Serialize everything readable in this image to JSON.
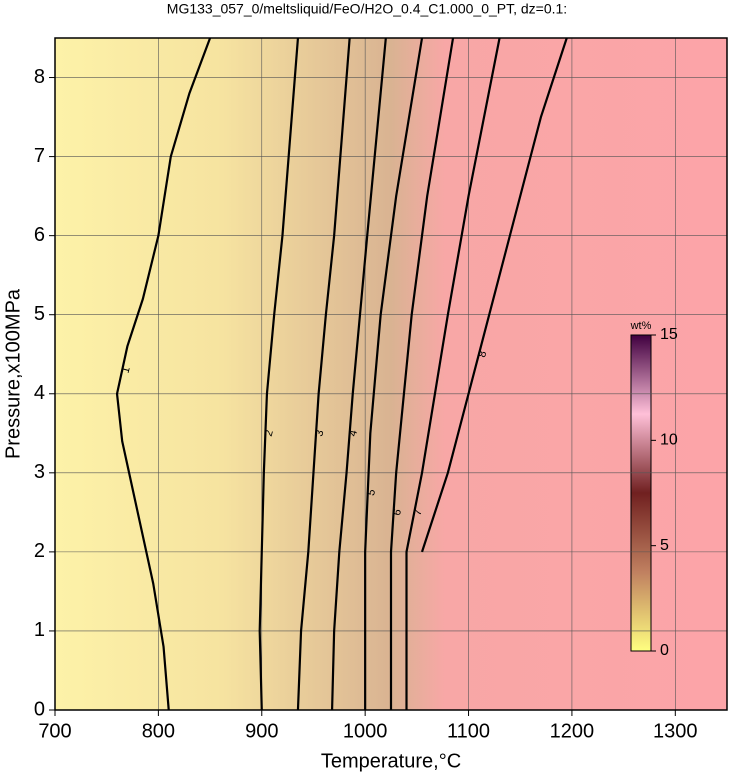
{
  "chart_data": {
    "type": "contour",
    "title": "MG133_057_0/meltsliquid/FeO/H2O_0.4_C1.000_0_PT, dz=0.1:",
    "x_label": "Temperature,°C",
    "y_label": "Pressure,x100MPa",
    "xlim": [
      700,
      1350
    ],
    "ylim": [
      0,
      8.5
    ],
    "xticks": [
      700,
      800,
      900,
      1000,
      1100,
      1200,
      1300
    ],
    "yticks": [
      0,
      1,
      2,
      3,
      4,
      5,
      6,
      7,
      8
    ],
    "grid": true,
    "contours": [
      {
        "label": "1",
        "x": [
          810,
          805,
          795,
          780,
          765,
          760,
          770,
          785,
          800,
          812,
          830,
          850
        ],
        "y": [
          0,
          0.8,
          1.6,
          2.5,
          3.4,
          4.0,
          4.6,
          5.2,
          6,
          7,
          7.8,
          8.5
        ]
      },
      {
        "label": "2",
        "x": [
          900,
          898,
          900,
          902,
          905,
          912,
          920,
          935
        ],
        "y": [
          0,
          1,
          2,
          3,
          4,
          5,
          6,
          8.5
        ]
      },
      {
        "label": "3",
        "x": [
          935,
          938,
          945,
          950,
          955,
          962,
          970,
          985
        ],
        "y": [
          0,
          1,
          2,
          3,
          4,
          5,
          6,
          8.5
        ]
      },
      {
        "label": "4",
        "x": [
          968,
          970,
          975,
          982,
          988,
          995,
          1002,
          1020
        ],
        "y": [
          0,
          1,
          2,
          3,
          4,
          5,
          6,
          8.5
        ]
      },
      {
        "label": "5",
        "x": [
          1000,
          1000,
          1000,
          1005,
          1015,
          1030,
          1055
        ],
        "y": [
          0,
          1,
          2,
          3.5,
          5,
          6.5,
          8.5
        ]
      },
      {
        "label": "6",
        "x": [
          1025,
          1025,
          1025,
          1030,
          1045,
          1060,
          1085
        ],
        "y": [
          0,
          1,
          2,
          3,
          5,
          6.5,
          8.5
        ]
      },
      {
        "label": "7",
        "x": [
          1040,
          1040,
          1040,
          1055,
          1080,
          1100,
          1130
        ],
        "y": [
          0,
          1,
          2,
          3,
          5,
          6.5,
          8.5
        ]
      },
      {
        "label": "8",
        "x": [
          1055,
          1080,
          1100,
          1120,
          1140,
          1170,
          1195
        ],
        "y": [
          2,
          3,
          4,
          5,
          6,
          7.5,
          8.5
        ]
      }
    ],
    "colorbar": {
      "label": "wt%",
      "lim": [
        0,
        15
      ],
      "ticks": [
        0,
        5,
        10,
        15
      ]
    }
  }
}
